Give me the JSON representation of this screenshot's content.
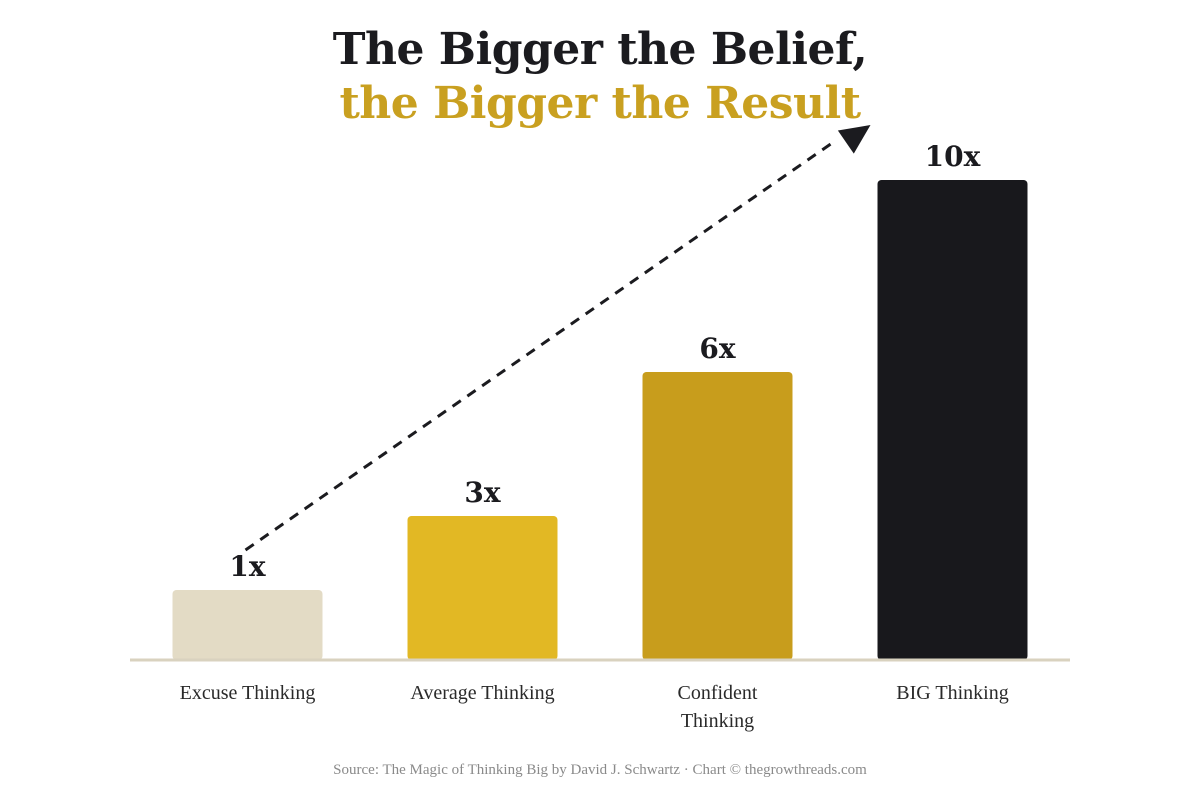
{
  "title_line_1": "The Bigger the Belief,",
  "title_line_2": "the Bigger the Result",
  "source": "Source: The Magic of Thinking Big by David J. Schwartz · Chart © thegrowthreads.com",
  "colors": {
    "title_dark": "#1b1b1f",
    "title_accent": "#c9a020",
    "baseline": "#d9d2bf",
    "arrow": "#1b1b1f"
  },
  "chart_data": {
    "type": "bar",
    "categories": [
      "Excuse Thinking",
      "Average Thinking",
      "Confident Thinking",
      "BIG Thinking"
    ],
    "values": [
      1,
      3,
      6,
      10
    ],
    "value_labels": [
      "1x",
      "3x",
      "6x",
      "10x"
    ],
    "bar_colors": [
      "#e3dbc5",
      "#e2b824",
      "#c89d1c",
      "#18181c"
    ],
    "ylim": [
      0,
      10
    ],
    "grid": false,
    "legend": "none",
    "annotations": [
      "dashed arrow rising from the first bar to the last bar"
    ]
  }
}
